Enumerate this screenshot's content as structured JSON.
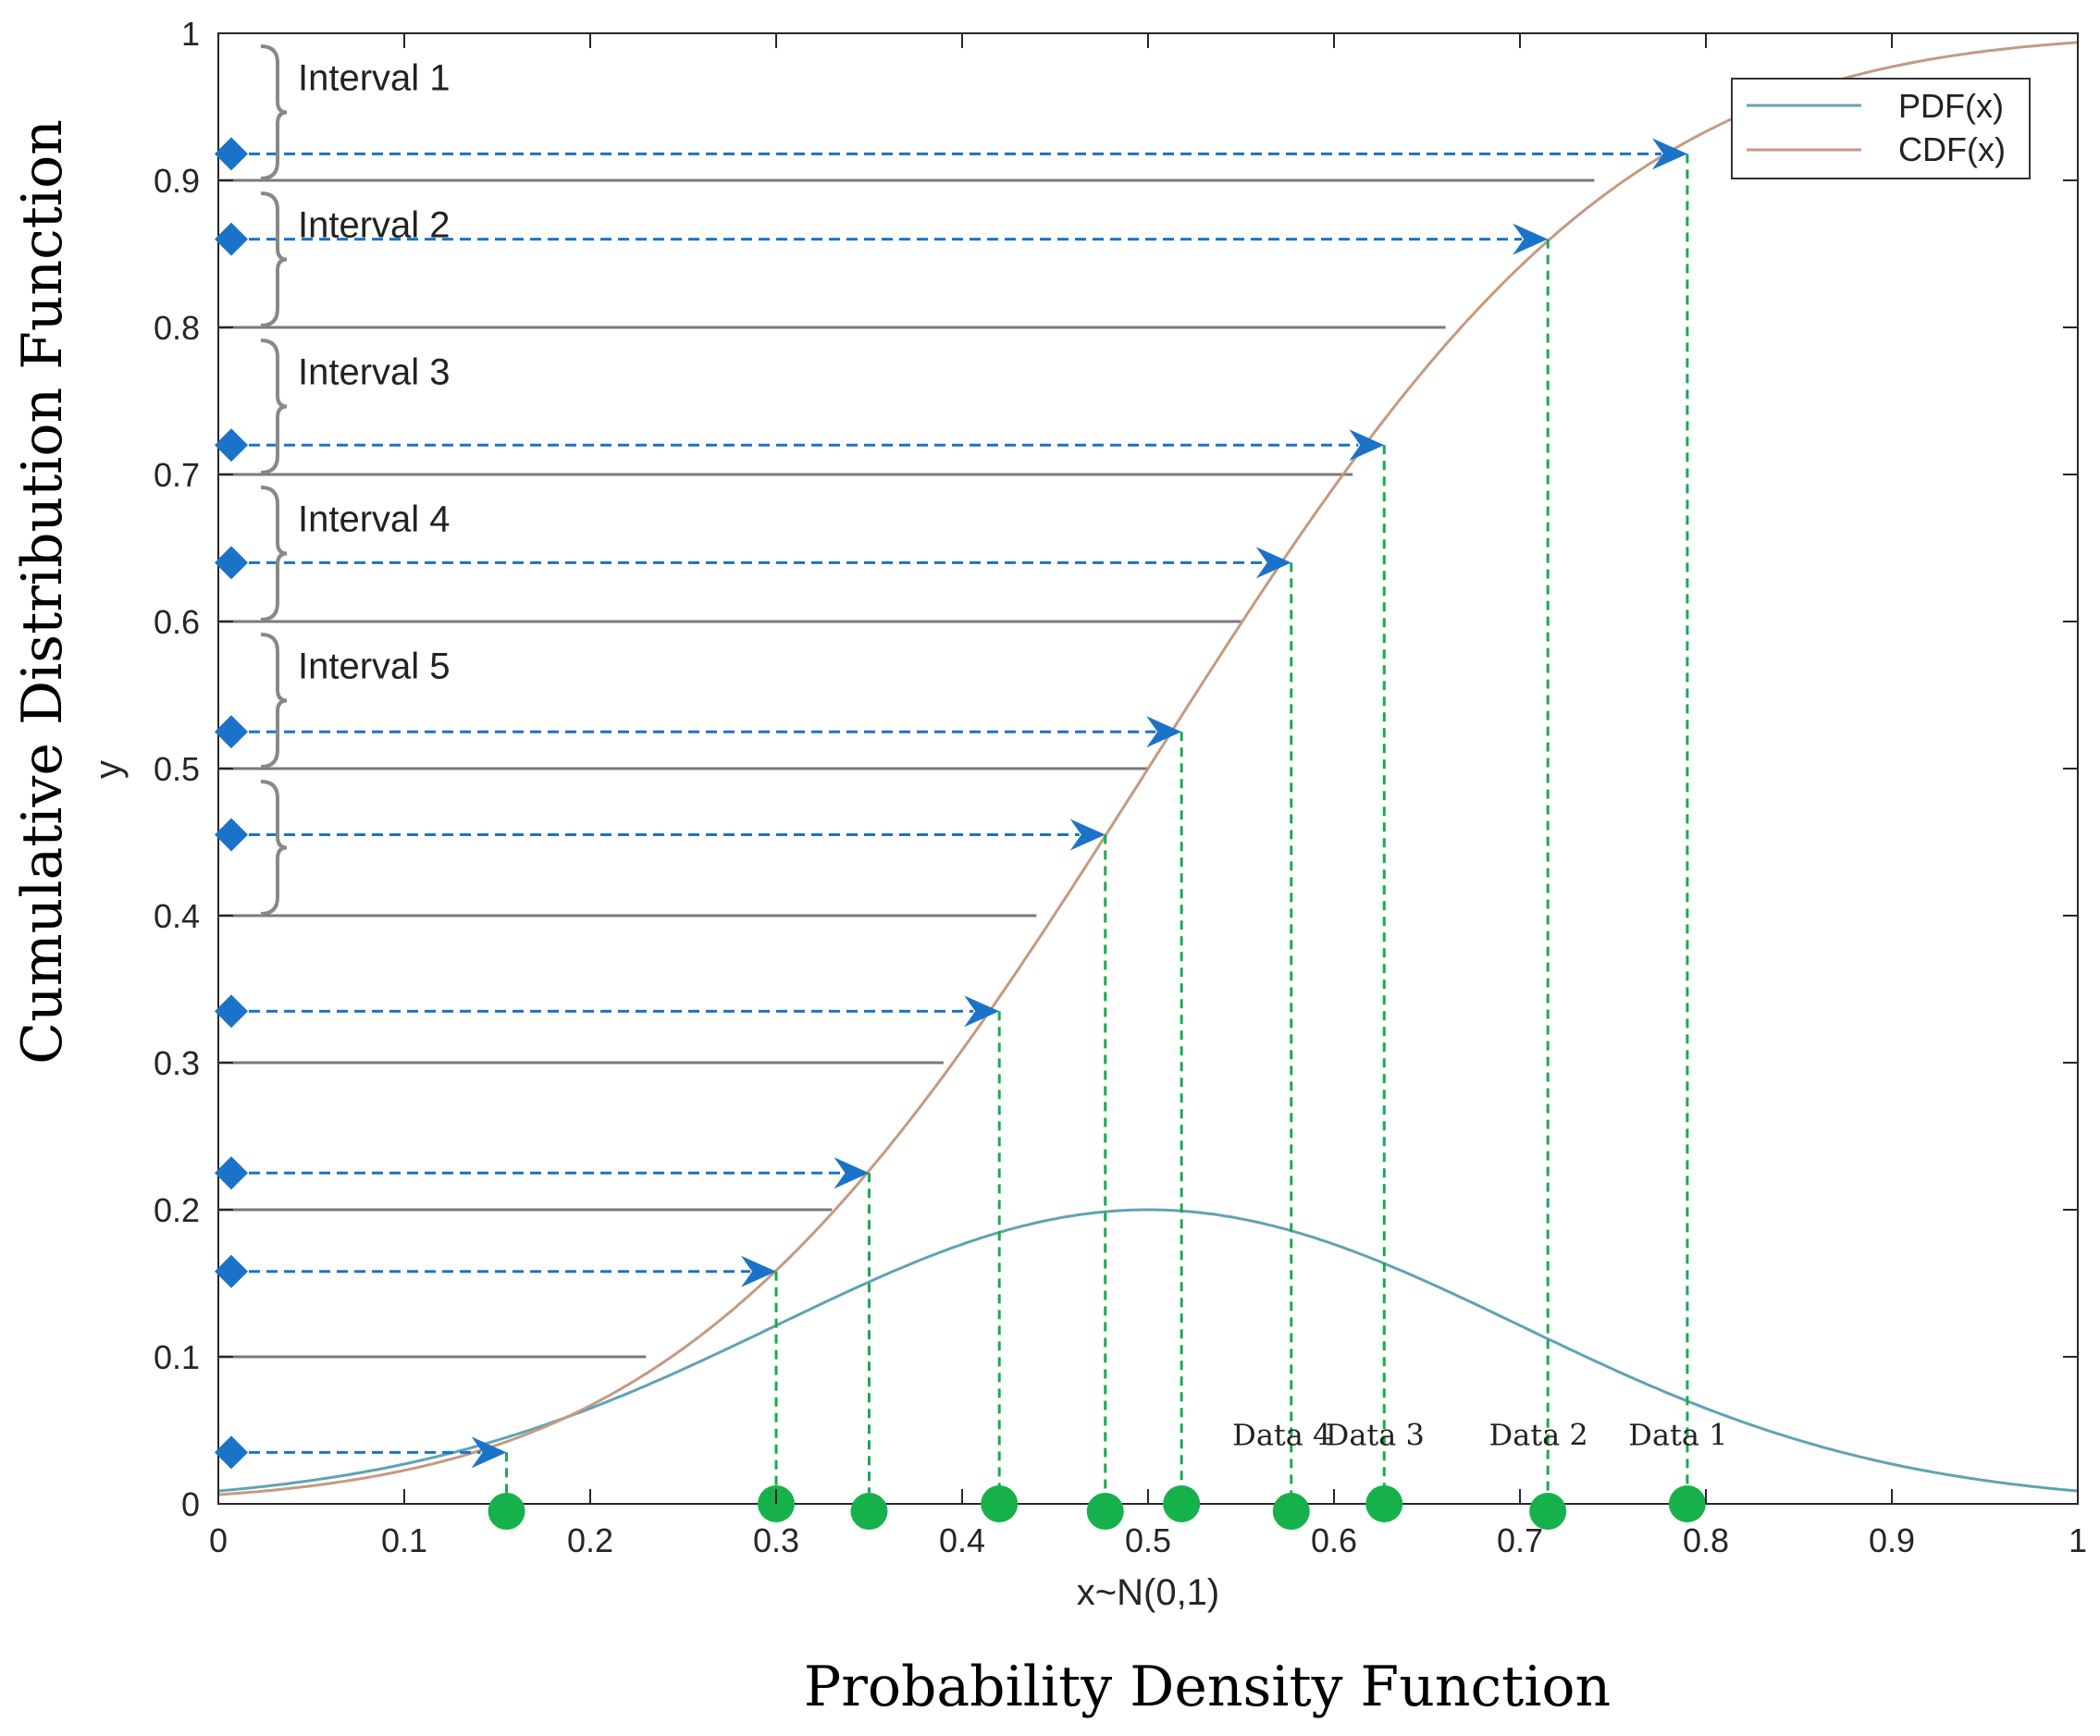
{
  "chart_data": {
    "type": "line",
    "ylabel_inner": "y",
    "xlabel_inner": "x~N(0,1)",
    "ylabel_outer": "Cumulative Distribution Function",
    "xlabel_outer": "Probability Density Function",
    "xlim": [
      0,
      1
    ],
    "ylim": [
      0,
      1
    ],
    "x_ticks": [
      "0",
      "0.1",
      "0.2",
      "0.3",
      "0.4",
      "0.5",
      "0.6",
      "0.7",
      "0.8",
      "0.9",
      "1"
    ],
    "y_ticks": [
      "0",
      "0.1",
      "0.2",
      "0.3",
      "0.4",
      "0.5",
      "0.6",
      "0.7",
      "0.8",
      "0.9",
      "1"
    ],
    "legend": {
      "placement": "top-right",
      "entries": [
        "PDF(x)",
        "CDF(x)"
      ]
    },
    "series": [
      {
        "name": "PDF(x)",
        "color": "#5fa3b3",
        "mean": 0.5,
        "sd": 0.2,
        "peak": 0.2
      },
      {
        "name": "CDF(x)",
        "color": "#c49a82",
        "mean": 0.5,
        "sd": 0.2
      }
    ],
    "horizontal_levels": [
      {
        "y": 0.9,
        "x_end": 0.74
      },
      {
        "y": 0.8,
        "x_end": 0.66
      },
      {
        "y": 0.7,
        "x_end": 0.61
      },
      {
        "y": 0.6,
        "x_end": 0.55
      },
      {
        "y": 0.5,
        "x_end": 0.5
      },
      {
        "y": 0.4,
        "x_end": 0.44
      },
      {
        "y": 0.3,
        "x_end": 0.39
      },
      {
        "y": 0.2,
        "x_end": 0.33
      },
      {
        "y": 0.1,
        "x_end": 0.23
      }
    ],
    "sample_points": [
      {
        "x": 0.155,
        "y": 0.035
      },
      {
        "x": 0.3,
        "y": 0.158
      },
      {
        "x": 0.35,
        "y": 0.225
      },
      {
        "x": 0.42,
        "y": 0.335
      },
      {
        "x": 0.477,
        "y": 0.455
      },
      {
        "x": 0.518,
        "y": 0.525
      },
      {
        "x": 0.577,
        "y": 0.64
      },
      {
        "x": 0.627,
        "y": 0.72
      },
      {
        "x": 0.715,
        "y": 0.86
      },
      {
        "x": 0.79,
        "y": 0.918
      }
    ],
    "intervals": [
      {
        "label": "Interval 1",
        "y_top": 1.0,
        "y_bottom": 0.9
      },
      {
        "label": "Interval 2",
        "y_top": 0.9,
        "y_bottom": 0.8
      },
      {
        "label": "Interval 3",
        "y_top": 0.8,
        "y_bottom": 0.7
      },
      {
        "label": "Interval 4",
        "y_top": 0.7,
        "y_bottom": 0.6
      },
      {
        "label": "Interval 5",
        "y_top": 0.6,
        "y_bottom": 0.5
      },
      {
        "label": "",
        "y_top": 0.5,
        "y_bottom": 0.4
      }
    ],
    "data_labels": [
      {
        "label": "Data 4",
        "x": 0.577
      },
      {
        "label": "Data 3",
        "x": 0.627
      },
      {
        "label": "Data 2",
        "x": 0.715
      },
      {
        "label": "Data 1",
        "x": 0.79
      }
    ],
    "colors": {
      "arrow": "#1a73c8",
      "guide": "#1aaa50",
      "point": "#17b14c",
      "level_line": "#7a7a7a",
      "brace": "#888888"
    },
    "grid": false
  }
}
